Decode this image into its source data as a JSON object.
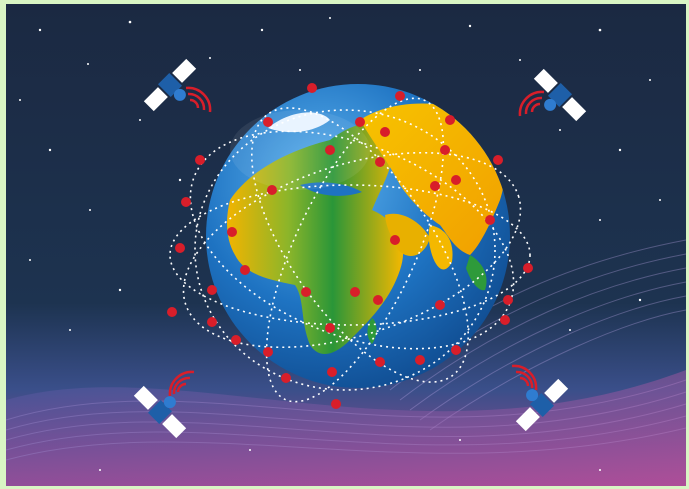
{
  "scene": {
    "subject": "globe-with-satellite-network",
    "satellites": [
      "satellite-top-left",
      "satellite-top-right",
      "satellite-bottom-left",
      "satellite-bottom-right"
    ],
    "colors": {
      "frame": "#d9f5c4",
      "space": "#1b2a45",
      "ocean": "#1f78c8",
      "land_green": "#2e9a3a",
      "land_yellow": "#f4b400",
      "orbit": "#ffffff",
      "node": "#d81e2a",
      "signal": "#d81e2a",
      "wave_purple": "#9a4aa8"
    }
  }
}
